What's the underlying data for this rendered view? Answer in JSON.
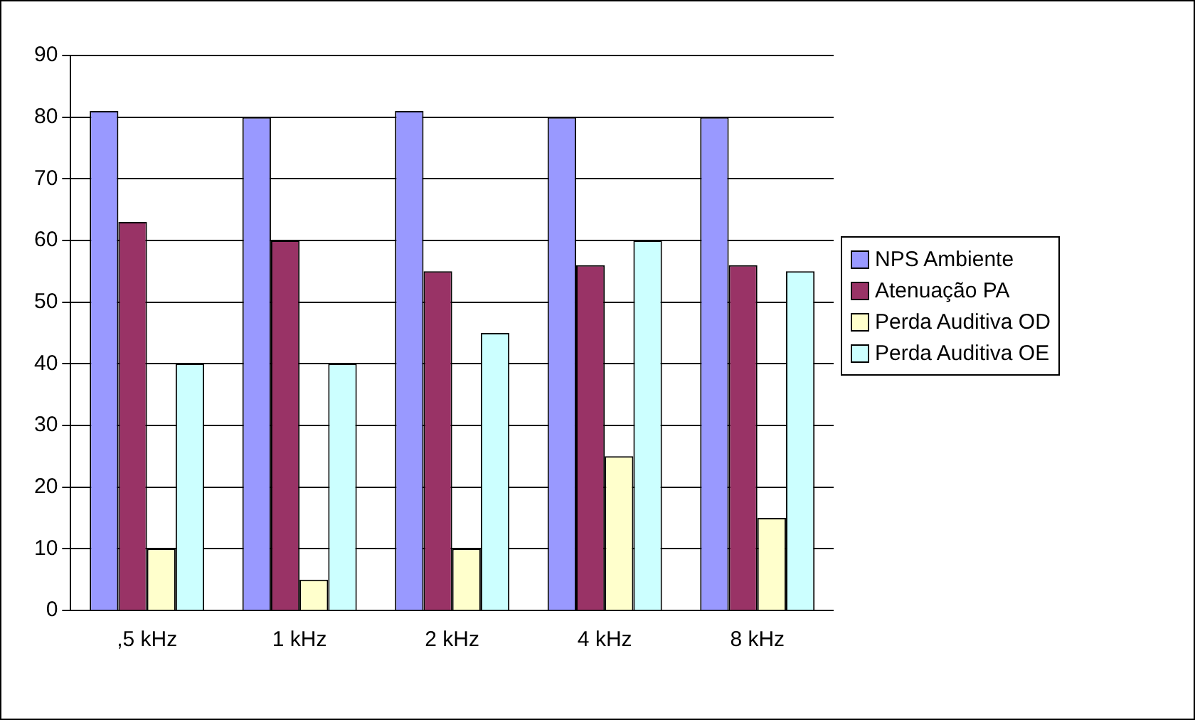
{
  "chart_data": {
    "type": "bar",
    "categories": [
      ",5 kHz",
      "1 kHz",
      "2 kHz",
      "4 kHz",
      "8 kHz"
    ],
    "series": [
      {
        "name": "NPS Ambiente",
        "color": "#9999ff",
        "values": [
          81,
          80,
          81,
          80,
          80
        ]
      },
      {
        "name": "Atenuação PA",
        "color": "#993366",
        "values": [
          63,
          60,
          55,
          56,
          56
        ]
      },
      {
        "name": "Perda Auditiva OD",
        "color": "#ffffcc",
        "values": [
          10,
          5,
          10,
          25,
          15
        ]
      },
      {
        "name": "Perda Auditiva OE",
        "color": "#ccffff",
        "values": [
          40,
          40,
          45,
          60,
          55
        ]
      }
    ],
    "ylim": [
      0,
      90
    ],
    "yticks": [
      0,
      10,
      20,
      30,
      40,
      50,
      60,
      70,
      80,
      90
    ],
    "grid": "y",
    "legend": "right"
  }
}
